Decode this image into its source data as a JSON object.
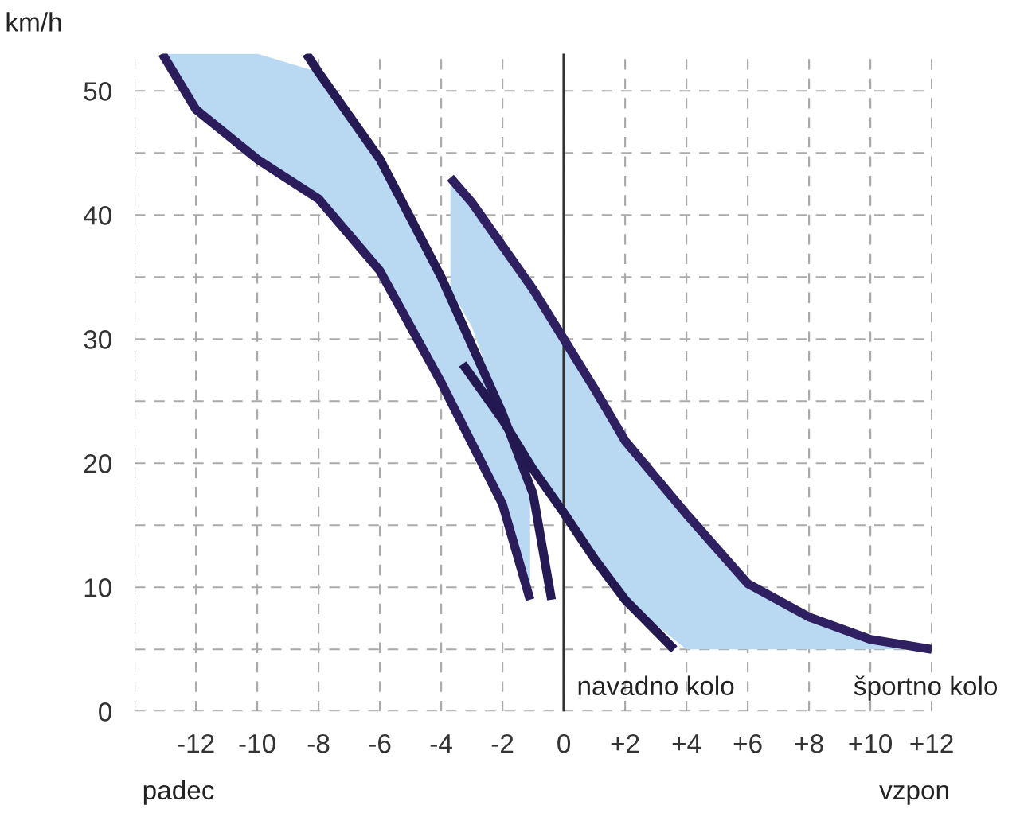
{
  "chart_data": {
    "type": "line",
    "ylabel": "km/h",
    "xlim": [
      -14,
      12
    ],
    "ylim": [
      0,
      53
    ],
    "xticks": [
      {
        "value": -14,
        "label": null
      },
      -12,
      -10,
      -8,
      -6,
      -4,
      -2,
      0,
      {
        "value": 2,
        "label": "+2"
      },
      {
        "value": 4,
        "label": "+4"
      },
      {
        "value": 6,
        "label": "+6"
      },
      {
        "value": 8,
        "label": "+8"
      },
      {
        "value": 10,
        "label": "+10"
      },
      {
        "value": 12,
        "label": "+12"
      }
    ],
    "yticks": [
      0,
      {
        "value": 5,
        "label": null
      },
      10,
      {
        "value": 15,
        "label": null
      },
      20,
      {
        "value": 25,
        "label": null
      },
      30,
      {
        "value": 35,
        "label": null
      },
      40,
      {
        "value": 45,
        "label": null
      },
      50
    ],
    "grid": true,
    "ref_lines": [
      {
        "axis": "x",
        "value": 0,
        "color": "#333333"
      }
    ],
    "series": [
      {
        "color": "#2b1d5c",
        "x": [
          -13.1,
          -12,
          -10,
          -8,
          -6,
          -4,
          -2,
          -1.1
        ],
        "values": [
          53,
          48.5,
          44.5,
          41.3,
          35.5,
          26.5,
          16.7,
          9
        ],
        "lower": [
          53,
          48.5,
          44.5,
          41.3,
          35.5,
          26.5,
          16.7,
          9
        ],
        "upper": [
          53,
          53,
          53,
          51.5,
          44.5,
          35,
          24,
          17
        ]
      },
      {
        "color": "#261a55",
        "x": [
          -8.4,
          -8,
          -6,
          -4,
          -2,
          -1,
          -0.4
        ],
        "values": [
          53,
          51.5,
          44.5,
          35,
          24,
          17.5,
          9
        ]
      },
      {
        "color": "#2f2062",
        "x": [
          -3.7,
          -3,
          -2,
          -1,
          0,
          1,
          2,
          4,
          6,
          8,
          10,
          12
        ],
        "values": [
          43,
          41,
          37.5,
          34,
          30,
          26,
          21.8,
          15.9,
          10.3,
          7.6,
          5.8,
          5
        ],
        "lower": [
          34,
          31,
          24,
          19.5,
          16,
          12.3,
          9,
          5,
          5,
          5,
          5,
          5
        ],
        "upper": [
          43,
          41,
          37.5,
          34,
          30,
          26,
          21.8,
          15.9,
          10.3,
          7.6,
          5.8,
          5
        ]
      },
      {
        "color": "#231850",
        "x": [
          -3.3,
          -2,
          -1,
          0,
          1,
          2,
          3.6
        ],
        "values": [
          28,
          23.5,
          19.5,
          16,
          12.3,
          9,
          5
        ]
      }
    ],
    "annotations": [
      {
        "text": "navadno kolo",
        "x": 3.6,
        "y": 5
      },
      {
        "text": "športno kolo",
        "x": 12,
        "y": 5
      },
      "padec",
      "vzpon"
    ]
  }
}
